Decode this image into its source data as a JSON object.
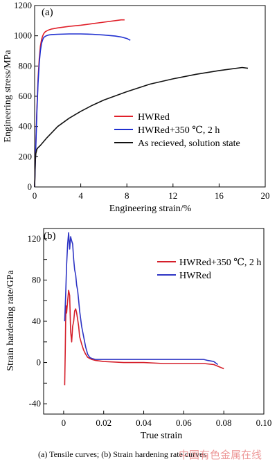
{
  "caption": "(a) Tensile curves; (b) Strain hardening rate curves",
  "watermark": "中国有色金属在线",
  "chart_data": [
    {
      "type": "line",
      "panel_label": "(a)",
      "xlabel": "Engineering strain/%",
      "ylabel": "Engineering stress/MPa",
      "xlim": [
        0,
        20
      ],
      "ylim": [
        0,
        1200
      ],
      "xticks": [
        0,
        4,
        8,
        12,
        16,
        20
      ],
      "yticks": [
        0,
        200,
        400,
        600,
        800,
        1000,
        1200
      ],
      "legend_position": "middle-right",
      "grid": false,
      "series": [
        {
          "name": "HWRed",
          "color": "#e0202a",
          "x": [
            0,
            0.1,
            0.2,
            0.3,
            0.4,
            0.5,
            0.6,
            0.7,
            0.8,
            0.9,
            1.0,
            1.2,
            1.5,
            2,
            3,
            4,
            5,
            6,
            7,
            7.5,
            7.8
          ],
          "y": [
            0,
            280,
            520,
            720,
            850,
            930,
            975,
            1000,
            1015,
            1025,
            1030,
            1038,
            1045,
            1052,
            1062,
            1070,
            1080,
            1090,
            1100,
            1105,
            1105
          ]
        },
        {
          "name": "HWRed+350 ℃, 2 h",
          "color": "#2030d0",
          "x": [
            0,
            0.1,
            0.2,
            0.3,
            0.4,
            0.5,
            0.6,
            0.7,
            0.8,
            1.0,
            1.2,
            1.5,
            2,
            3,
            4,
            5,
            6,
            7,
            7.5,
            8,
            8.3
          ],
          "y": [
            0,
            260,
            500,
            690,
            820,
            900,
            950,
            975,
            990,
            1000,
            1005,
            1008,
            1010,
            1012,
            1012,
            1010,
            1005,
            998,
            992,
            982,
            970
          ]
        },
        {
          "name": "As recieved, solution state",
          "color": "#111111",
          "x": [
            0,
            0.05,
            0.1,
            0.2,
            0.3,
            0.5,
            1,
            2,
            3,
            4,
            5,
            6,
            8,
            10,
            12,
            14,
            16,
            17,
            18,
            18.5
          ],
          "y": [
            0,
            150,
            220,
            250,
            260,
            275,
            320,
            400,
            455,
            500,
            540,
            575,
            630,
            680,
            715,
            745,
            770,
            780,
            790,
            785
          ]
        }
      ]
    },
    {
      "type": "line",
      "panel_label": "(b)",
      "xlabel": "True strain",
      "ylabel": "Strain hardening rate/GPa",
      "xlim": [
        -0.01,
        0.1
      ],
      "ylim": [
        -50,
        130
      ],
      "xticks": [
        0,
        0.02,
        0.04,
        0.06,
        0.08,
        0.1
      ],
      "xtick_labels": [
        "0",
        "0.02",
        "0.04",
        "0.06",
        "0.08",
        "0.10"
      ],
      "yticks": [
        -40,
        -20,
        0,
        20,
        40,
        60,
        80,
        100,
        120
      ],
      "ytick_labels": [
        "-40",
        "",
        "0",
        "",
        "40",
        "",
        "80",
        "",
        "120"
      ],
      "legend_position": "top-right",
      "grid": false,
      "series": [
        {
          "name": "HWRed+350 ℃, 2 h",
          "color": "#d51f2a",
          "x": [
            0.0005,
            0.0008,
            0.001,
            0.0012,
            0.0015,
            0.002,
            0.0025,
            0.003,
            0.0035,
            0.004,
            0.0045,
            0.005,
            0.0055,
            0.006,
            0.0065,
            0.007,
            0.0075,
            0.008,
            0.009,
            0.01,
            0.011,
            0.012,
            0.014,
            0.016,
            0.02,
            0.03,
            0.04,
            0.05,
            0.06,
            0.07,
            0.075,
            0.08
          ],
          "y": [
            -22,
            10,
            40,
            55,
            48,
            60,
            70,
            65,
            30,
            20,
            35,
            40,
            50,
            52,
            48,
            42,
            35,
            25,
            18,
            12,
            8,
            5,
            3,
            2,
            1,
            0,
            0,
            -1,
            -1,
            -1,
            -2,
            -6
          ]
        },
        {
          "name": "HWRed",
          "color": "#2d34c4",
          "x": [
            0.0005,
            0.001,
            0.0015,
            0.002,
            0.0025,
            0.003,
            0.0035,
            0.004,
            0.0045,
            0.005,
            0.0055,
            0.006,
            0.0065,
            0.007,
            0.0075,
            0.008,
            0.009,
            0.01,
            0.011,
            0.012,
            0.013,
            0.014,
            0.016,
            0.02,
            0.03,
            0.04,
            0.05,
            0.06,
            0.07,
            0.072,
            0.075,
            0.077
          ],
          "y": [
            40,
            65,
            95,
            115,
            126,
            110,
            122,
            118,
            115,
            100,
            90,
            85,
            75,
            70,
            60,
            50,
            35,
            25,
            15,
            8,
            5,
            4,
            3,
            3,
            3,
            3,
            3,
            3,
            3,
            2,
            1,
            -2
          ]
        }
      ]
    }
  ]
}
